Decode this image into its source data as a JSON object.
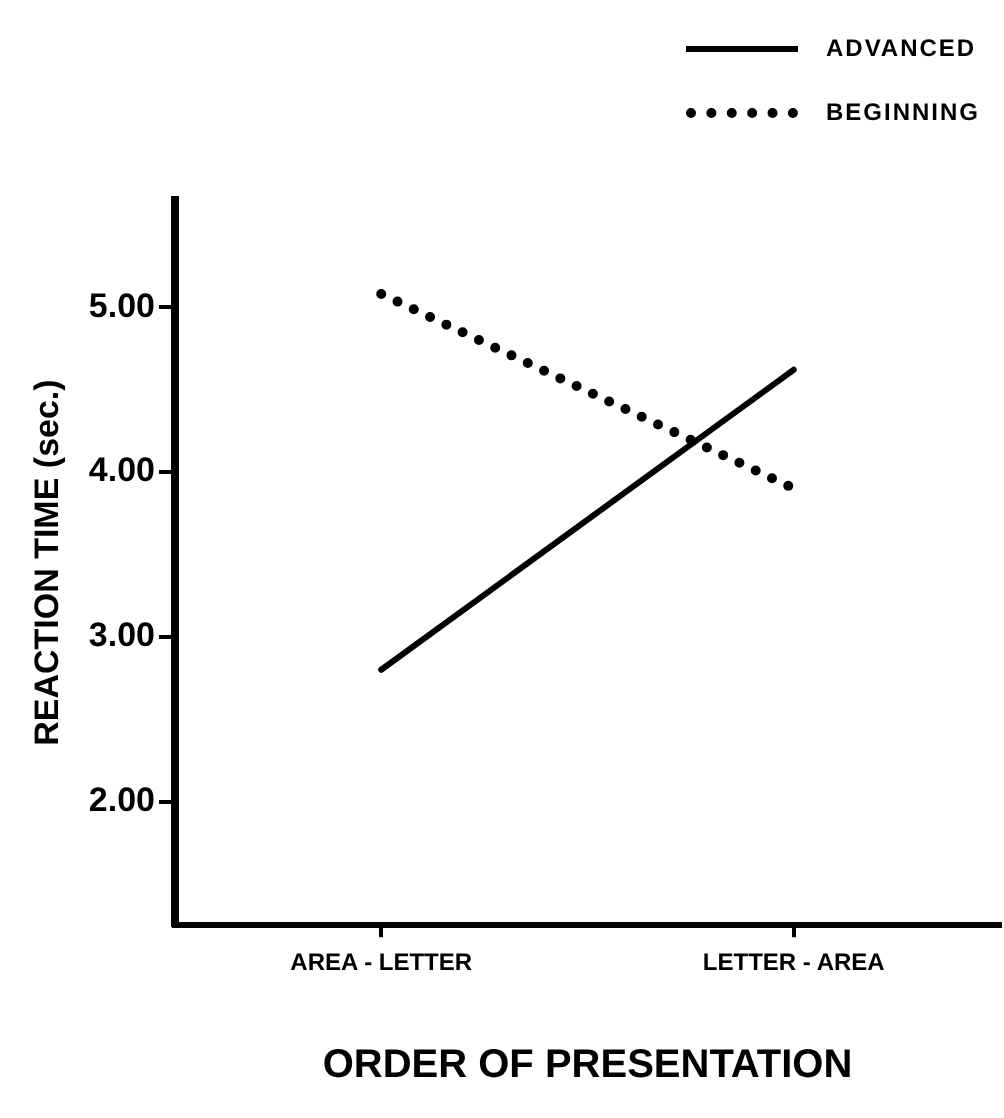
{
  "chart_data": {
    "type": "line",
    "xlabel": "ORDER OF PRESENTATION",
    "ylabel": "REACTION TIME (sec.)",
    "categories": [
      "AREA - LETTER",
      "LETTER - AREA"
    ],
    "series": [
      {
        "name": "ADVANCED",
        "color": "#000000",
        "values": [
          2.8,
          4.62
        ],
        "line_style": "solid"
      },
      {
        "name": "BEGINNING",
        "color": "#000000",
        "values": [
          5.08,
          3.9
        ],
        "line_style": "dotted"
      }
    ],
    "ylim": [
      1.25,
      5.65
    ],
    "yticks": [
      {
        "value": 2,
        "label": "2.00"
      },
      {
        "value": 3,
        "label": "3.00"
      },
      {
        "value": 4,
        "label": "4.00"
      },
      {
        "value": 5,
        "label": "5.00"
      }
    ],
    "grid": false,
    "legend": "top right",
    "marker": "none"
  }
}
